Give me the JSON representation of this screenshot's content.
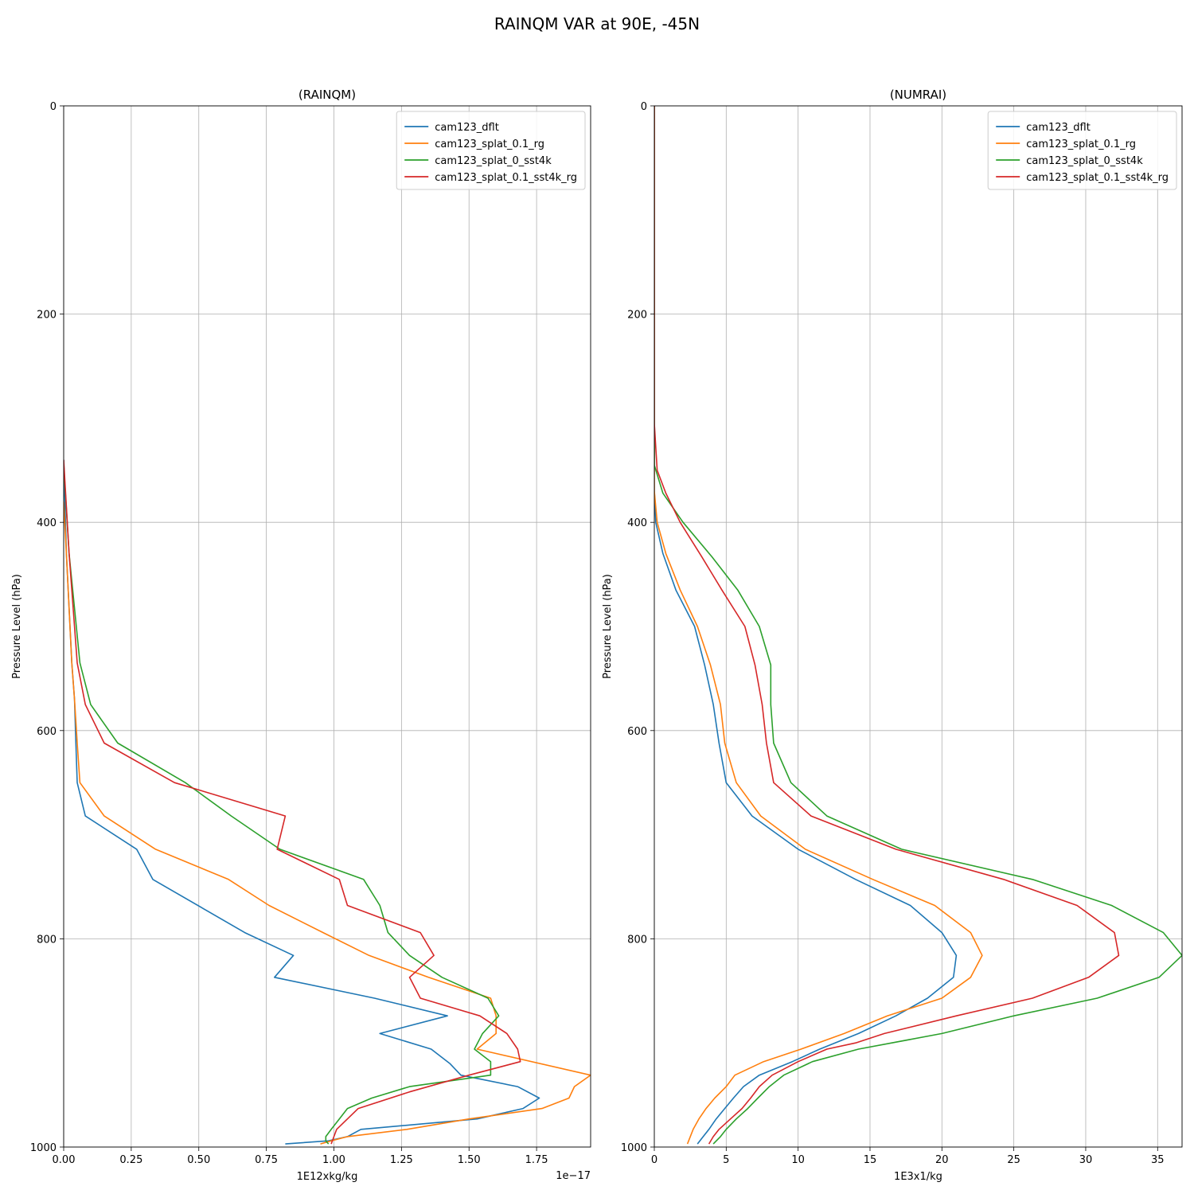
{
  "figure": {
    "title": "RAINQM VAR at 90E, -45N"
  },
  "colors": {
    "cam123_dflt": "#1f77b4",
    "cam123_splat_0.1_rg": "#ff7f0e",
    "cam123_splat_0_sst4k": "#2ca02c",
    "cam123_splat_0.1_sst4k_rg": "#d62728"
  },
  "chart_data": [
    {
      "type": "line",
      "title": "(RAINQM)",
      "xlabel": "1E12xkg/kg",
      "ylabel": "Pressure Level (hPa)",
      "x_offset_label": "1e−17",
      "xlim": [
        0,
        1.95
      ],
      "ylim": [
        1000,
        0
      ],
      "xticks": [
        0,
        0.25,
        0.5,
        0.75,
        1.0,
        1.25,
        1.5,
        1.75
      ],
      "xtick_labels": [
        "0.00",
        "0.25",
        "0.50",
        "0.75",
        "1.00",
        "1.25",
        "1.50",
        "1.75"
      ],
      "yticks": [
        0,
        200,
        400,
        600,
        800,
        1000
      ],
      "ytick_labels": [
        "0",
        "200",
        "400",
        "600",
        "800",
        "1000"
      ],
      "grid": true,
      "legend": "top-right",
      "series": [
        {
          "name": "cam123_dflt",
          "color": "#1f77b4",
          "points": [
            [
              0,
              340
            ],
            [
              0.01,
              430
            ],
            [
              0.03,
              535
            ],
            [
              0.04,
              570
            ],
            [
              0.045,
              612
            ],
            [
              0.05,
              650
            ],
            [
              0.08,
              682
            ],
            [
              0.27,
              714
            ],
            [
              0.33,
              743
            ],
            [
              0.67,
              794
            ],
            [
              0.85,
              816
            ],
            [
              0.78,
              837
            ],
            [
              1.15,
              857
            ],
            [
              1.42,
              874
            ],
            [
              1.17,
              891
            ],
            [
              1.36,
              906
            ],
            [
              1.43,
              920
            ],
            [
              1.47,
              931
            ],
            [
              1.68,
              942
            ],
            [
              1.76,
              953
            ],
            [
              1.7,
              963
            ],
            [
              1.53,
              973
            ],
            [
              1.1,
              983
            ],
            [
              1.05,
              990
            ],
            [
              0.98,
              994
            ],
            [
              0.82,
              997
            ]
          ]
        },
        {
          "name": "cam123_splat_0.1_rg",
          "color": "#ff7f0e",
          "points": [
            [
              0,
              380
            ],
            [
              0.01,
              430
            ],
            [
              0.03,
              535
            ],
            [
              0.04,
              570
            ],
            [
              0.05,
              612
            ],
            [
              0.06,
              650
            ],
            [
              0.15,
              682
            ],
            [
              0.34,
              714
            ],
            [
              0.61,
              743
            ],
            [
              0.76,
              768
            ],
            [
              0.96,
              794
            ],
            [
              1.13,
              816
            ],
            [
              1.35,
              837
            ],
            [
              1.58,
              857
            ],
            [
              1.6,
              874
            ],
            [
              1.6,
              891
            ],
            [
              1.53,
              906
            ],
            [
              1.95,
              931
            ],
            [
              1.89,
              942
            ],
            [
              1.87,
              953
            ],
            [
              1.77,
              963
            ],
            [
              1.5,
              973
            ],
            [
              1.27,
              983
            ],
            [
              1.05,
              990
            ],
            [
              0.99,
              994
            ],
            [
              0.95,
              997
            ]
          ]
        },
        {
          "name": "cam123_splat_0_sst4k",
          "color": "#2ca02c",
          "points": [
            [
              0,
              345
            ],
            [
              0.02,
              430
            ],
            [
              0.06,
              535
            ],
            [
              0.1,
              575
            ],
            [
              0.2,
              612
            ],
            [
              0.45,
              650
            ],
            [
              0.62,
              682
            ],
            [
              0.8,
              714
            ],
            [
              1.11,
              743
            ],
            [
              1.17,
              768
            ],
            [
              1.2,
              794
            ],
            [
              1.28,
              816
            ],
            [
              1.4,
              837
            ],
            [
              1.57,
              857
            ],
            [
              1.61,
              874
            ],
            [
              1.55,
              891
            ],
            [
              1.52,
              906
            ],
            [
              1.58,
              918
            ],
            [
              1.58,
              931
            ],
            [
              1.28,
              942
            ],
            [
              1.14,
              953
            ],
            [
              1.05,
              963
            ],
            [
              1.02,
              973
            ],
            [
              0.99,
              983
            ],
            [
              0.97,
              990
            ],
            [
              0.97,
              994
            ],
            [
              0.98,
              997
            ]
          ]
        },
        {
          "name": "cam123_splat_0.1_sst4k_rg",
          "color": "#d62728",
          "points": [
            [
              0,
              340
            ],
            [
              0.02,
              430
            ],
            [
              0.05,
              535
            ],
            [
              0.08,
              575
            ],
            [
              0.15,
              612
            ],
            [
              0.41,
              650
            ],
            [
              0.82,
              682
            ],
            [
              0.79,
              714
            ],
            [
              1.02,
              743
            ],
            [
              1.05,
              768
            ],
            [
              1.32,
              794
            ],
            [
              1.37,
              816
            ],
            [
              1.28,
              837
            ],
            [
              1.32,
              857
            ],
            [
              1.54,
              874
            ],
            [
              1.64,
              891
            ],
            [
              1.68,
              906
            ],
            [
              1.69,
              918
            ],
            [
              1.5,
              931
            ],
            [
              1.28,
              947
            ],
            [
              1.09,
              963
            ],
            [
              1.01,
              983
            ],
            [
              1.0,
              990
            ],
            [
              0.99,
              997
            ]
          ]
        }
      ]
    },
    {
      "type": "line",
      "title": "(NUMRAI)",
      "xlabel": "1E3x1/kg",
      "ylabel": "Pressure Level (hPa)",
      "xlim": [
        0,
        36.7
      ],
      "ylim": [
        1000,
        0
      ],
      "xticks": [
        0,
        5,
        10,
        15,
        20,
        25,
        30,
        35
      ],
      "xtick_labels": [
        "0",
        "5",
        "10",
        "15",
        "20",
        "25",
        "30",
        "35"
      ],
      "yticks": [
        0,
        200,
        400,
        600,
        800,
        1000
      ],
      "ytick_labels": [
        "0",
        "200",
        "400",
        "600",
        "800",
        "1000"
      ],
      "grid": true,
      "legend": "top-right",
      "series": [
        {
          "name": "cam123_dflt",
          "color": "#1f77b4",
          "points": [
            [
              0,
              0
            ],
            [
              0,
              370
            ],
            [
              0.1,
              400
            ],
            [
              0.6,
              430
            ],
            [
              1.5,
              465
            ],
            [
              2.8,
              500
            ],
            [
              3.5,
              537
            ],
            [
              4.1,
              575
            ],
            [
              4.5,
              612
            ],
            [
              5.0,
              650
            ],
            [
              6.8,
              682
            ],
            [
              10.0,
              714
            ],
            [
              14.0,
              743
            ],
            [
              17.8,
              768
            ],
            [
              20.0,
              794
            ],
            [
              21.0,
              816
            ],
            [
              20.8,
              837
            ],
            [
              19.0,
              857
            ],
            [
              16.8,
              874
            ],
            [
              14.2,
              891
            ],
            [
              11.5,
              906
            ],
            [
              9.6,
              918
            ],
            [
              7.3,
              931
            ],
            [
              6.2,
              942
            ],
            [
              5.5,
              953
            ],
            [
              4.9,
              963
            ],
            [
              4.3,
              973
            ],
            [
              3.8,
              983
            ],
            [
              3.4,
              990
            ],
            [
              3.0,
              997
            ]
          ]
        },
        {
          "name": "cam123_splat_0.1_rg",
          "color": "#ff7f0e",
          "points": [
            [
              0,
              0
            ],
            [
              0,
              370
            ],
            [
              0.2,
              400
            ],
            [
              0.8,
              430
            ],
            [
              1.8,
              465
            ],
            [
              3.0,
              500
            ],
            [
              3.9,
              537
            ],
            [
              4.6,
              575
            ],
            [
              4.9,
              612
            ],
            [
              5.7,
              650
            ],
            [
              7.4,
              682
            ],
            [
              10.5,
              714
            ],
            [
              15.2,
              743
            ],
            [
              19.5,
              768
            ],
            [
              22.0,
              794
            ],
            [
              22.8,
              816
            ],
            [
              22.0,
              837
            ],
            [
              20.0,
              857
            ],
            [
              16.2,
              874
            ],
            [
              13.2,
              891
            ],
            [
              10.2,
              906
            ],
            [
              7.6,
              918
            ],
            [
              5.6,
              931
            ],
            [
              5.0,
              942
            ],
            [
              4.2,
              953
            ],
            [
              3.6,
              963
            ],
            [
              3.1,
              973
            ],
            [
              2.7,
              983
            ],
            [
              2.5,
              990
            ],
            [
              2.3,
              997
            ]
          ]
        },
        {
          "name": "cam123_splat_0_sst4k",
          "color": "#2ca02c",
          "points": [
            [
              0,
              0
            ],
            [
              0,
              345
            ],
            [
              0.6,
              372
            ],
            [
              2.0,
              400
            ],
            [
              4.0,
              433
            ],
            [
              5.8,
              465
            ],
            [
              7.3,
              500
            ],
            [
              8.1,
              537
            ],
            [
              8.1,
              575
            ],
            [
              8.3,
              612
            ],
            [
              9.5,
              650
            ],
            [
              12.0,
              682
            ],
            [
              17.2,
              714
            ],
            [
              26.3,
              743
            ],
            [
              31.8,
              768
            ],
            [
              35.4,
              794
            ],
            [
              36.7,
              816
            ],
            [
              35.1,
              837
            ],
            [
              30.8,
              857
            ],
            [
              25.0,
              874
            ],
            [
              20.0,
              891
            ],
            [
              14.2,
              906
            ],
            [
              11.0,
              918
            ],
            [
              9.0,
              931
            ],
            [
              8.0,
              942
            ],
            [
              7.2,
              953
            ],
            [
              6.5,
              963
            ],
            [
              5.7,
              973
            ],
            [
              5.0,
              983
            ],
            [
              4.6,
              990
            ],
            [
              4.1,
              997
            ]
          ]
        },
        {
          "name": "cam123_splat_0.1_sst4k_rg",
          "color": "#d62728",
          "points": [
            [
              0,
              0
            ],
            [
              0,
              305
            ],
            [
              0.2,
              350
            ],
            [
              0.8,
              372
            ],
            [
              1.8,
              400
            ],
            [
              3.3,
              433
            ],
            [
              4.7,
              465
            ],
            [
              6.3,
              500
            ],
            [
              7.0,
              537
            ],
            [
              7.5,
              575
            ],
            [
              7.8,
              612
            ],
            [
              8.3,
              650
            ],
            [
              10.9,
              682
            ],
            [
              16.8,
              714
            ],
            [
              24.3,
              743
            ],
            [
              29.4,
              768
            ],
            [
              32.0,
              794
            ],
            [
              32.3,
              816
            ],
            [
              30.2,
              837
            ],
            [
              26.3,
              857
            ],
            [
              21.0,
              874
            ],
            [
              16.0,
              891
            ],
            [
              14.0,
              900
            ],
            [
              12.0,
              906
            ],
            [
              10.0,
              918
            ],
            [
              8.2,
              931
            ],
            [
              7.3,
              942
            ],
            [
              6.7,
              953
            ],
            [
              6.1,
              963
            ],
            [
              5.3,
              973
            ],
            [
              4.5,
              983
            ],
            [
              4.1,
              990
            ],
            [
              3.8,
              997
            ]
          ]
        }
      ]
    }
  ]
}
